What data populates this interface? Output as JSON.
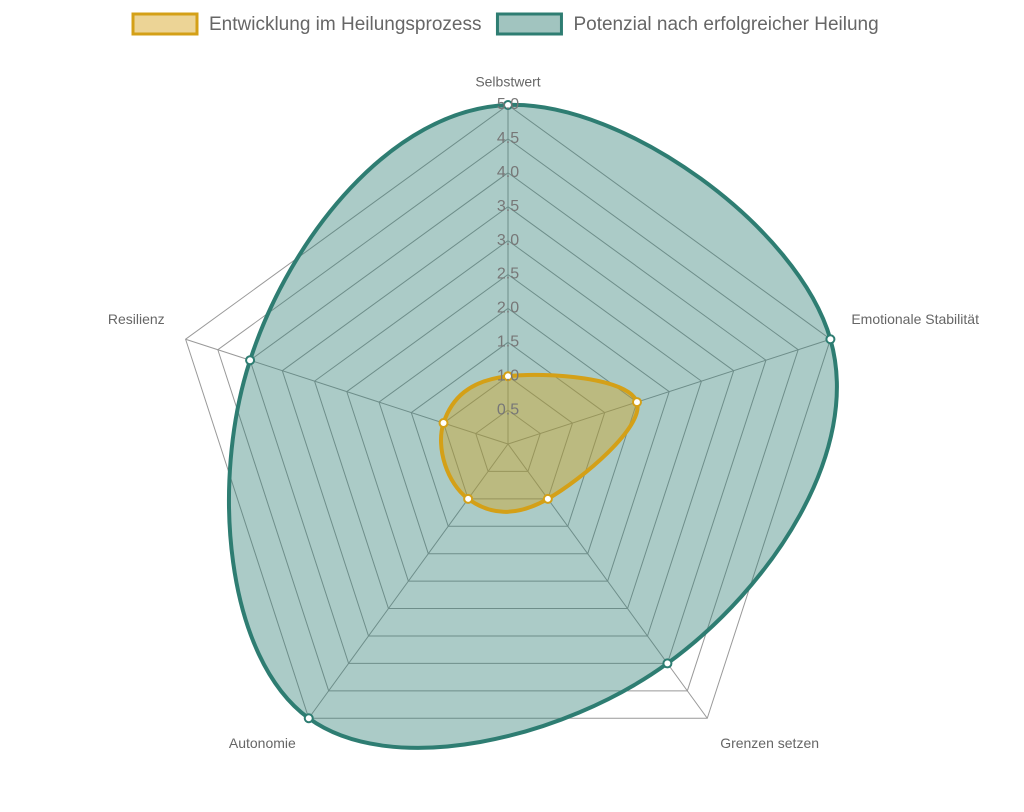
{
  "chart_data": {
    "type": "radar",
    "categories": [
      "Selbstwert",
      "Emotionale Stabilität",
      "Grenzen setzen",
      "Autonomie",
      "Resilienz"
    ],
    "series": [
      {
        "name": "Entwicklung im Heilungsprozess",
        "color": "#d4a017",
        "values": [
          1,
          2,
          1,
          1,
          1
        ]
      },
      {
        "name": "Potenzial nach erfolgreicher Heilung",
        "color": "#2e7d72",
        "values": [
          5,
          5,
          4,
          5,
          4
        ]
      }
    ],
    "rlim": [
      0,
      5
    ],
    "rticks": [
      0.5,
      {
        "value": 1,
        "label": "1.0"
      },
      1.5,
      {
        "value": 2,
        "label": "2.0"
      },
      2.5,
      {
        "value": 3,
        "label": "3.0"
      },
      3.5,
      {
        "value": 4,
        "label": "4.0"
      },
      4.5,
      {
        "value": 5,
        "label": "5.0"
      }
    ],
    "grid": true,
    "legend": "top"
  }
}
